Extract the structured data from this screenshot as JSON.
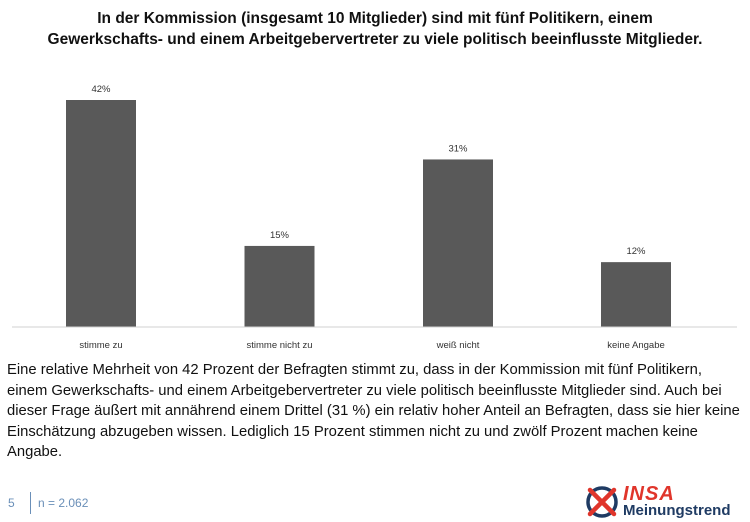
{
  "title": "In der Kommission (insgesamt 10 Mitglieder) sind mit fünf Politikern, einem Gewerkschafts- und einem Arbeitgebervertreter zu viele politisch beeinflusste Mitglieder.",
  "chart_data": {
    "type": "bar",
    "categories": [
      "stimme zu",
      "stimme nicht zu",
      "weiß nicht",
      "keine Angabe"
    ],
    "values": [
      42,
      15,
      31,
      12
    ],
    "data_labels": [
      "42%",
      "15%",
      "31%",
      "12%"
    ],
    "unit": "%",
    "ylim": [
      0,
      42
    ],
    "bar_color": "#595959",
    "grid": false,
    "legend": "none"
  },
  "description": "Eine relative Mehrheit von 42 Prozent der Befragten stimmt zu, dass in der Kommission mit fünf Politikern, einem Gewerkschafts- und einem Arbeitgebervertreter zu viele politisch beeinflusste Mitglieder sind. Auch bei dieser Frage äußert mit annährend einem Drittel (31 %) ein relativ hoher Anteil an Befragten, dass sie hier keine Einschätzung abzugeben wissen. Lediglich 15 Prozent stimmen nicht zu und zwölf Prozent machen keine Angabe.",
  "footer": {
    "page_number": "5",
    "sample_size": "n = 2.062",
    "accent_color": "#6a8fb8"
  },
  "logo": {
    "word": "INSA",
    "subtitle": "Meinungstrend",
    "brand_red": "#e0352b",
    "brand_navy": "#1f3b63"
  }
}
